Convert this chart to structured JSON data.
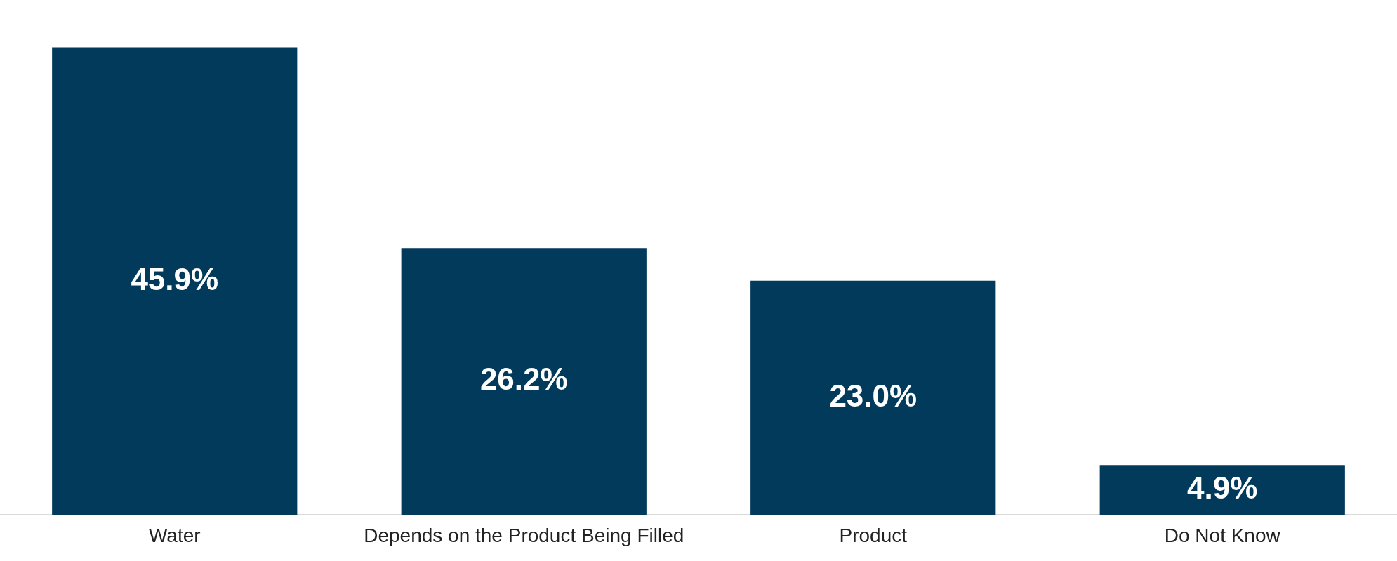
{
  "chart_data": {
    "type": "bar",
    "categories": [
      "Water",
      "Depends on the Product Being Filled",
      "Product",
      "Do Not Know"
    ],
    "values": [
      45.9,
      26.2,
      23.0,
      4.9
    ],
    "value_labels": [
      "45.9%",
      "26.2%",
      "23.0%",
      "4.9%"
    ],
    "color": "#023a5c",
    "grid": false,
    "legend": false
  }
}
